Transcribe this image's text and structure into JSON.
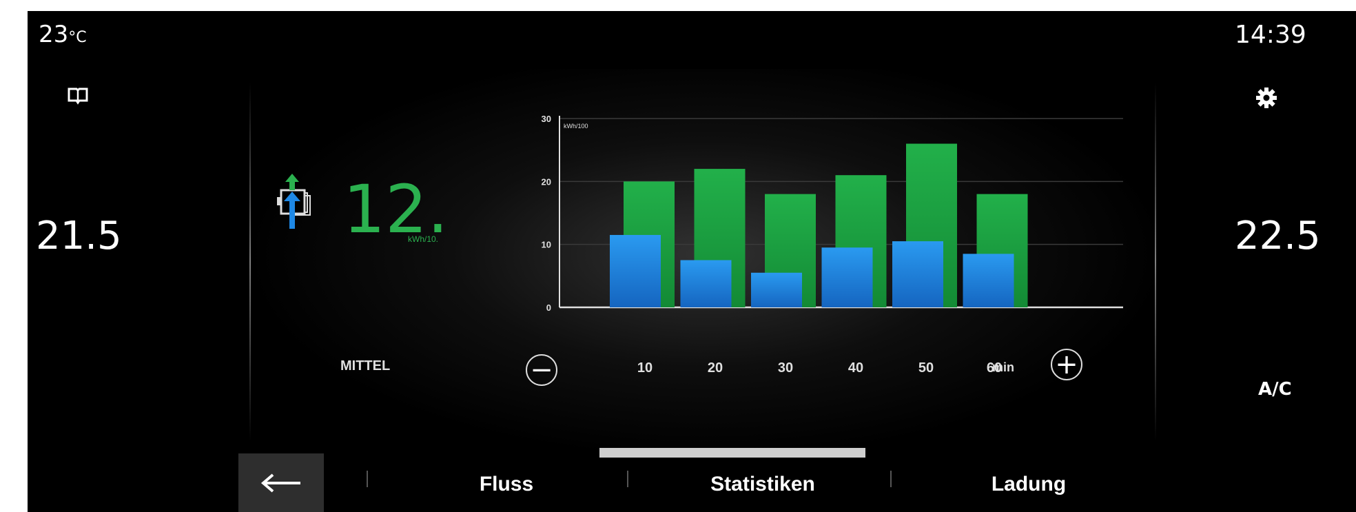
{
  "left_panel": {
    "outside_temp_value": "23",
    "outside_temp_unit": "°C",
    "cabin_temp_left": "21.5",
    "icons": [
      "book-icon"
    ]
  },
  "right_panel": {
    "clock": "14:39",
    "cabin_temp_right": "22.5",
    "ac_label": "A/C",
    "icons": [
      "gear-icon"
    ]
  },
  "consumption": {
    "average_value": "12.",
    "average_unit": "kWh/10.",
    "average_label": "MITTEL",
    "accent_green": "#2bb14f",
    "accent_blue": "#1e88e5"
  },
  "chart_data": {
    "type": "bar",
    "categories": [
      "10",
      "20",
      "30",
      "40",
      "50",
      "60"
    ],
    "x_unit": "min",
    "ylabel": "kWh/100",
    "ylim": [
      0,
      30
    ],
    "yticks": [
      "0",
      "10",
      "20",
      "30"
    ],
    "grid": true,
    "series": [
      {
        "values": [
          20,
          22,
          18,
          21,
          26,
          18
        ],
        "color": "#1fa845"
      },
      {
        "values": [
          11.5,
          7.5,
          5.5,
          9.5,
          10.5,
          8.5
        ],
        "color": "#1e88e5"
      }
    ]
  },
  "controls": {
    "zoom_out": "−",
    "zoom_in": "+"
  },
  "tabs": {
    "back_icon": "arrow-left-icon",
    "items": [
      "Fluss",
      "Statistiken",
      "Ladung"
    ],
    "active": "Statistiken"
  }
}
